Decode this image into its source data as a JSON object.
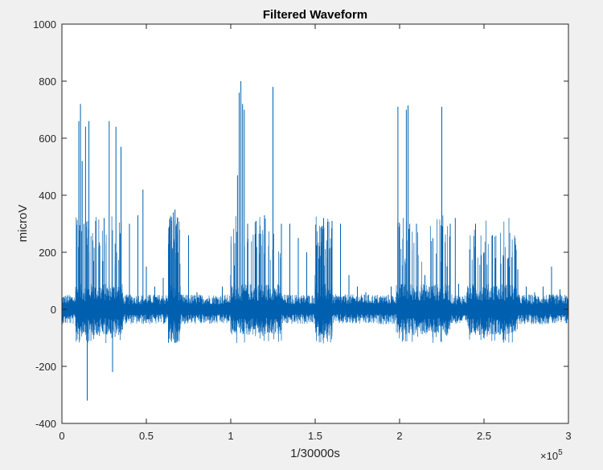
{
  "chart_data": {
    "type": "line",
    "title": "Filtered Waveform",
    "xlabel": "1/30000s",
    "ylabel": "microV",
    "x_exponent_base": "×10",
    "x_exponent_power": "5",
    "xlim": [
      0,
      300000
    ],
    "ylim": [
      -400,
      1000
    ],
    "xticks": [
      0,
      50000,
      100000,
      150000,
      200000,
      250000,
      300000
    ],
    "xtick_labels": [
      "0",
      "0.5",
      "1",
      "1.5",
      "2",
      "2.5",
      "3"
    ],
    "yticks": [
      -400,
      -200,
      0,
      200,
      400,
      600,
      800,
      1000
    ],
    "ytick_labels": [
      "-400",
      "-200",
      "0",
      "200",
      "400",
      "600",
      "800",
      "1000"
    ],
    "grid": false,
    "box": true,
    "line_color": "#0060b0",
    "series": [
      {
        "x": [
          0,
          10000,
          11000,
          12000,
          13000,
          14000,
          15000,
          16000,
          20000,
          25000,
          28000,
          30000,
          32000,
          35000,
          40000,
          45000,
          48000,
          50000,
          55000,
          60000,
          65000,
          66000,
          67000,
          68000,
          70000,
          75000,
          80000,
          85000,
          90000,
          95000,
          100000,
          104000,
          105000,
          106000,
          107000,
          108000,
          110000,
          115000,
          120000,
          125000,
          130000,
          135000,
          140000,
          145000,
          150000,
          155000,
          160000,
          165000,
          170000,
          175000,
          180000,
          185000,
          190000,
          195000,
          199000,
          200000,
          204000,
          205000,
          206000,
          210000,
          215000,
          220000,
          225000,
          230000,
          233000,
          235000,
          240000,
          245000,
          250000,
          255000,
          260000,
          265000,
          270000,
          275000,
          280000,
          285000,
          290000,
          295000,
          300000
        ],
        "values": [
          10,
          660,
          720,
          520,
          300,
          640,
          -320,
          660,
          310,
          320,
          660,
          -220,
          640,
          570,
          300,
          330,
          420,
          150,
          80,
          110,
          310,
          340,
          350,
          300,
          80,
          260,
          60,
          30,
          40,
          80,
          120,
          470,
          760,
          800,
          720,
          700,
          300,
          310,
          330,
          780,
          300,
          300,
          250,
          200,
          120,
          320,
          310,
          300,
          120,
          80,
          60,
          30,
          40,
          80,
          710,
          300,
          700,
          715,
          300,
          300,
          120,
          80,
          710,
          300,
          320,
          90,
          60,
          300,
          200,
          260,
          160,
          150,
          140,
          80,
          60,
          80,
          150,
          70,
          20
        ]
      }
    ]
  }
}
